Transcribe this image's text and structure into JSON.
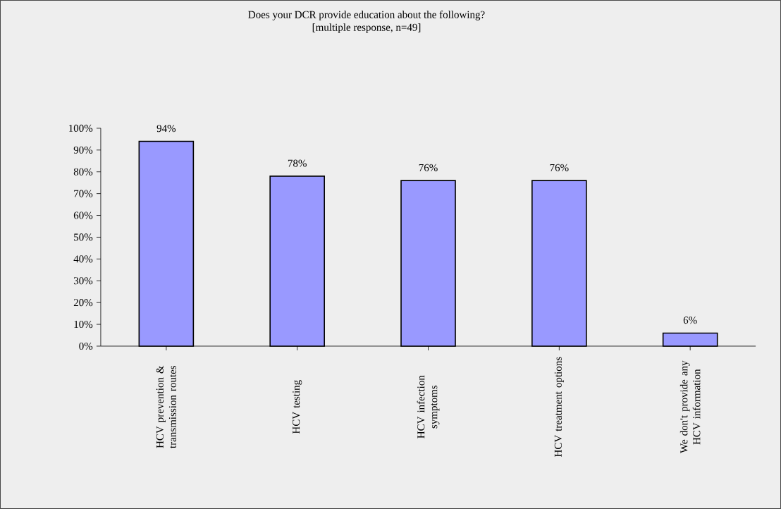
{
  "chart_data": {
    "type": "bar",
    "title": "Does your DCR provide education about the following?",
    "subtitle": "[multiple response, n=49]",
    "categories": [
      "HCV prevention & transmission routes",
      "HCV testing",
      "HCV infection symptoms",
      "HCV treatment options",
      "We don't provide any HCV information"
    ],
    "values": [
      94,
      78,
      76,
      76,
      6
    ],
    "value_labels": [
      "94%",
      "78%",
      "76%",
      "76%",
      "6%"
    ],
    "color": "#9999ff",
    "ylim": [
      0,
      100
    ],
    "yticks": [
      {
        "value": 0,
        "label": "0%"
      },
      {
        "value": 10,
        "label": "10%"
      },
      {
        "value": 20,
        "label": "20%"
      },
      {
        "value": 30,
        "label": "30%"
      },
      {
        "value": 40,
        "label": "40%"
      },
      {
        "value": 50,
        "label": "50%"
      },
      {
        "value": 60,
        "label": "60%"
      },
      {
        "value": 70,
        "label": "70%"
      },
      {
        "value": 80,
        "label": "80%"
      },
      {
        "value": 90,
        "label": "90%"
      },
      {
        "value": 100,
        "label": "100%"
      }
    ],
    "grid": false
  }
}
